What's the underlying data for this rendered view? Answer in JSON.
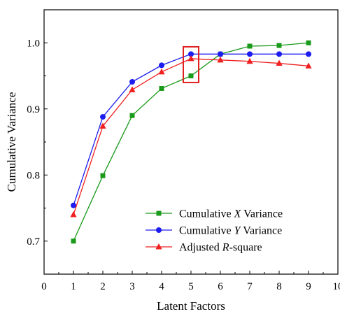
{
  "chart_data": {
    "type": "line",
    "title": "",
    "xlabel": "Latent Factors",
    "ylabel": "Cumulative Variance",
    "xlim": [
      0,
      10
    ],
    "ylim": [
      0.65,
      1.05
    ],
    "xticks": [
      "0",
      "1",
      "2",
      "3",
      "4",
      "5",
      "6",
      "7",
      "8",
      "9",
      "10"
    ],
    "yticks": [
      "0.7",
      "0.8",
      "0.9",
      "1.0"
    ],
    "x": [
      1,
      2,
      3,
      4,
      5,
      6,
      7,
      8,
      9
    ],
    "grid": false,
    "legend_position": "bottom-right",
    "series": [
      {
        "name_parts": [
          "Cumulative ",
          "X",
          " Variance"
        ],
        "color": "#1a9a1a",
        "marker": "square",
        "values": [
          0.7,
          0.799,
          0.89,
          0.931,
          0.95,
          0.983,
          0.995,
          0.996,
          1.0
        ]
      },
      {
        "name_parts": [
          "Cumulative ",
          "Y",
          " Variance"
        ],
        "color": "#1c1cf0",
        "marker": "circle",
        "values": [
          0.754,
          0.888,
          0.941,
          0.966,
          0.983,
          0.983,
          0.983,
          0.983,
          0.983
        ]
      },
      {
        "name_parts": [
          "Adjusted ",
          "R",
          "-square"
        ],
        "color": "#f02020",
        "marker": "triangle",
        "values": [
          0.74,
          0.874,
          0.929,
          0.956,
          0.976,
          0.974,
          0.972,
          0.969,
          0.965
        ]
      }
    ],
    "highlight": {
      "x": 5,
      "y_range": [
        0.94,
        0.994
      ],
      "color": "#e02020"
    }
  }
}
